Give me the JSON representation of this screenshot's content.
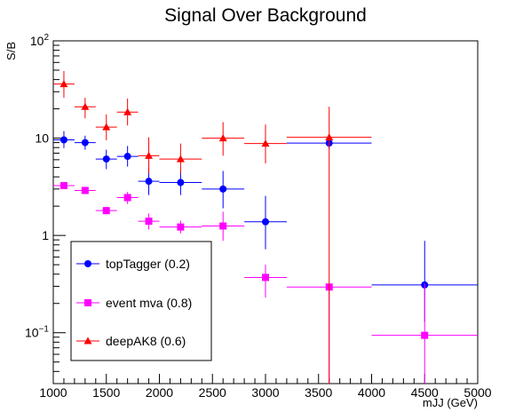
{
  "chart_data": {
    "type": "scatter",
    "title": "Signal Over Background",
    "xlabel": "mJJ (GeV)",
    "ylabel": "S/B",
    "xlim": [
      1000,
      5000
    ],
    "ylim": [
      0.03,
      100
    ],
    "yscale": "log",
    "x_ticks": [
      1000,
      1500,
      2000,
      2500,
      3000,
      3500,
      4000,
      4500,
      5000
    ],
    "y_ticks": [
      {
        "value": 0.1,
        "base": "10",
        "exp": "−1"
      },
      {
        "value": 1,
        "label": "1"
      },
      {
        "value": 10,
        "label": "10"
      },
      {
        "value": 100,
        "base": "10",
        "exp": "2"
      }
    ],
    "legend_position": "bottom-left",
    "series": [
      {
        "name": "topTagger (0.2)",
        "color": "#0000ff",
        "marker": "circle",
        "points": [
          {
            "x": 1100,
            "xlo": 1000,
            "xhi": 1200,
            "y": 9.6,
            "ylo": 7.9,
            "yhi": 11.8
          },
          {
            "x": 1300,
            "xlo": 1200,
            "xhi": 1400,
            "y": 9.0,
            "ylo": 7.6,
            "yhi": 10.6
          },
          {
            "x": 1500,
            "xlo": 1400,
            "xhi": 1600,
            "y": 6.1,
            "ylo": 4.8,
            "yhi": 7.6
          },
          {
            "x": 1700,
            "xlo": 1600,
            "xhi": 1800,
            "y": 6.5,
            "ylo": 5.1,
            "yhi": 8.3
          },
          {
            "x": 1900,
            "xlo": 1800,
            "xhi": 2000,
            "y": 3.6,
            "ylo": 2.6,
            "yhi": 5.0
          },
          {
            "x": 2200,
            "xlo": 2000,
            "xhi": 2400,
            "y": 3.5,
            "ylo": 2.6,
            "yhi": 4.6
          },
          {
            "x": 2600,
            "xlo": 2400,
            "xhi": 2800,
            "y": 3.0,
            "ylo": 1.9,
            "yhi": 4.6
          },
          {
            "x": 3000,
            "xlo": 2800,
            "xhi": 3200,
            "y": 1.38,
            "ylo": 0.72,
            "yhi": 2.55
          },
          {
            "x": 3600,
            "xlo": 3200,
            "xhi": 4000,
            "y": 8.9,
            "ylo": 7.7,
            "yhi": 10.2
          },
          {
            "x": 4500,
            "xlo": 4000,
            "xhi": 5000,
            "y": 0.31,
            "ylo": 0.13,
            "yhi": 0.88
          }
        ]
      },
      {
        "name": "event mva (0.8)",
        "color": "#ff00ff",
        "marker": "square",
        "points": [
          {
            "x": 1100,
            "xlo": 1000,
            "xhi": 1200,
            "y": 3.25,
            "ylo": 3.05,
            "yhi": 3.45
          },
          {
            "x": 1300,
            "xlo": 1200,
            "xhi": 1400,
            "y": 2.9,
            "ylo": 2.7,
            "yhi": 3.1
          },
          {
            "x": 1500,
            "xlo": 1400,
            "xhi": 1600,
            "y": 1.8,
            "ylo": 1.65,
            "yhi": 1.96
          },
          {
            "x": 1700,
            "xlo": 1600,
            "xhi": 1800,
            "y": 2.45,
            "ylo": 2.1,
            "yhi": 2.8
          },
          {
            "x": 1900,
            "xlo": 1800,
            "xhi": 2000,
            "y": 1.4,
            "ylo": 1.15,
            "yhi": 1.68
          },
          {
            "x": 2200,
            "xlo": 2000,
            "xhi": 2400,
            "y": 1.22,
            "ylo": 1.05,
            "yhi": 1.42
          },
          {
            "x": 2600,
            "xlo": 2400,
            "xhi": 2800,
            "y": 1.25,
            "ylo": 0.88,
            "yhi": 1.75
          },
          {
            "x": 3000,
            "xlo": 2800,
            "xhi": 3200,
            "y": 0.37,
            "ylo": 0.23,
            "yhi": 0.5
          },
          {
            "x": 3600,
            "xlo": 3200,
            "xhi": 4000,
            "y": 0.295,
            "ylo": 0.03,
            "yhi": 0.3
          },
          {
            "x": 4500,
            "xlo": 4000,
            "xhi": 5000,
            "y": 0.094,
            "ylo": 0.03,
            "yhi": 0.32
          }
        ]
      },
      {
        "name": "deepAK8 (0.6)",
        "color": "#ff0000",
        "marker": "triangle",
        "points": [
          {
            "x": 1100,
            "xlo": 1000,
            "xhi": 1200,
            "y": 36,
            "ylo": 26,
            "yhi": 49
          },
          {
            "x": 1300,
            "xlo": 1200,
            "xhi": 1400,
            "y": 21,
            "ylo": 16,
            "yhi": 26
          },
          {
            "x": 1500,
            "xlo": 1400,
            "xhi": 1600,
            "y": 13,
            "ylo": 9.5,
            "yhi": 17.5
          },
          {
            "x": 1700,
            "xlo": 1600,
            "xhi": 1800,
            "y": 18.5,
            "ylo": 13.5,
            "yhi": 25.5
          },
          {
            "x": 1900,
            "xlo": 1800,
            "xhi": 2000,
            "y": 6.6,
            "ylo": 4.3,
            "yhi": 10.2
          },
          {
            "x": 2200,
            "xlo": 2000,
            "xhi": 2400,
            "y": 6.1,
            "ylo": 4.3,
            "yhi": 8.8
          },
          {
            "x": 2600,
            "xlo": 2400,
            "xhi": 2800,
            "y": 10,
            "ylo": 6.6,
            "yhi": 14.6
          },
          {
            "x": 3000,
            "xlo": 2800,
            "xhi": 3200,
            "y": 8.8,
            "ylo": 5.5,
            "yhi": 13.8
          },
          {
            "x": 3600,
            "xlo": 3200,
            "xhi": 4000,
            "y": 10.2,
            "ylo": 0.03,
            "yhi": 21
          }
        ]
      }
    ]
  }
}
